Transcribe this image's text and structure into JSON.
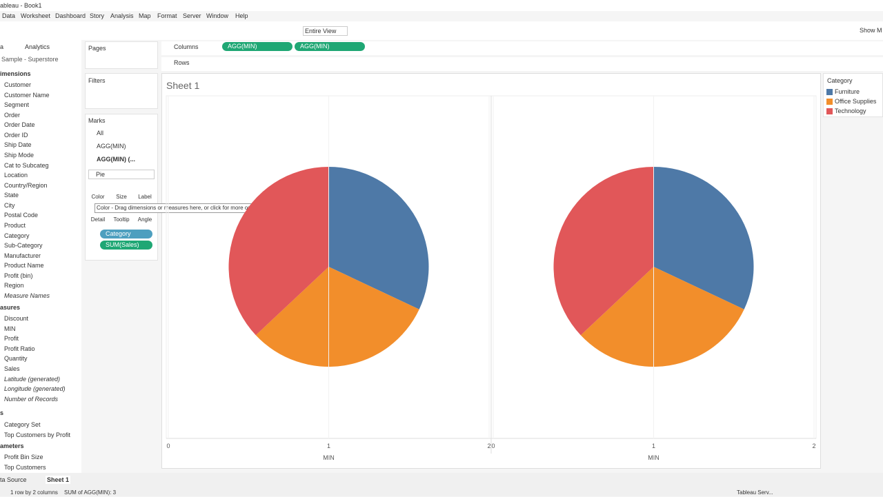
{
  "window_title": "ableau - Book1",
  "menu": [
    "Data",
    "Worksheet",
    "Dashboard",
    "Story",
    "Analysis",
    "Map",
    "Format",
    "Server",
    "Window",
    "Help"
  ],
  "toolbar": {
    "fit": "Entire View",
    "show_me": "Show M"
  },
  "side_tabs": [
    "a",
    "Analytics"
  ],
  "data_source": "Sample - Superstore",
  "dimensions": {
    "header": "imensions",
    "items": [
      "Customer",
      "Customer Name",
      "Segment",
      "Order",
      "Order Date",
      "Order ID",
      "Ship Date",
      "Ship Mode",
      "Cat to Subcateg",
      "Location",
      "Country/Region",
      "State",
      "City",
      "Postal Code",
      "Product",
      "Category",
      "Sub-Category",
      "Manufacturer",
      "Product Name",
      "Profit (bin)",
      "Region",
      "Measure Names"
    ]
  },
  "measures": {
    "header": "asures",
    "items": [
      "Discount",
      "MIN",
      "Profit",
      "Profit Ratio",
      "Quantity",
      "Sales",
      "Latitude (generated)",
      "Longitude (generated)",
      "Number of Records"
    ]
  },
  "sets": {
    "header": "s",
    "items": [
      "Category Set",
      "Top Customers by Profit"
    ]
  },
  "parameters": {
    "header": "ameters",
    "items": [
      "Profit Bin Size",
      "Top Customers"
    ]
  },
  "pages": "Pages",
  "filters": "Filters",
  "marks": {
    "header": "Marks",
    "cards": [
      "All",
      "AGG(MIN)",
      "AGG(MIN) (..."
    ],
    "mark_type": "Pie",
    "buttons": [
      "Color",
      "Size",
      "Label",
      "Detail",
      "Tooltip",
      "Angle"
    ],
    "pills": [
      "Category",
      "SUM(Sales)"
    ],
    "tooltip": "Color - Drag dimensions or measures here, or click for more options."
  },
  "columns": {
    "label": "Columns",
    "pills": [
      "AGG(MIN)",
      "AGG(MIN)"
    ]
  },
  "rows": {
    "label": "Rows"
  },
  "sheet_title": "Sheet 1",
  "legend": {
    "title": "Category"
  },
  "chart_data": [
    {
      "type": "pie",
      "categories": [
        "Furniture",
        "Office Supplies",
        "Technology"
      ],
      "values": [
        32,
        31,
        37
      ],
      "colors": [
        "#4e79a7",
        "#f28e2b",
        "#e15759"
      ],
      "x_label": "MIN",
      "xlim": [
        0,
        2
      ],
      "xticks": [
        0,
        1,
        2
      ]
    },
    {
      "type": "pie",
      "categories": [
        "Furniture",
        "Office Supplies",
        "Technology"
      ],
      "values": [
        32,
        31,
        37
      ],
      "colors": [
        "#4e79a7",
        "#f28e2b",
        "#e15759"
      ],
      "x_label": "MIN",
      "xlim": [
        0,
        2
      ],
      "xticks": [
        0,
        1,
        2
      ]
    }
  ],
  "status": {
    "tabs": [
      "ta Source",
      "Sheet 1"
    ],
    "info": [
      "1 row by 2 columns",
      "SUM of AGG(MIN): 3"
    ],
    "server": "Tableau Serv..."
  }
}
